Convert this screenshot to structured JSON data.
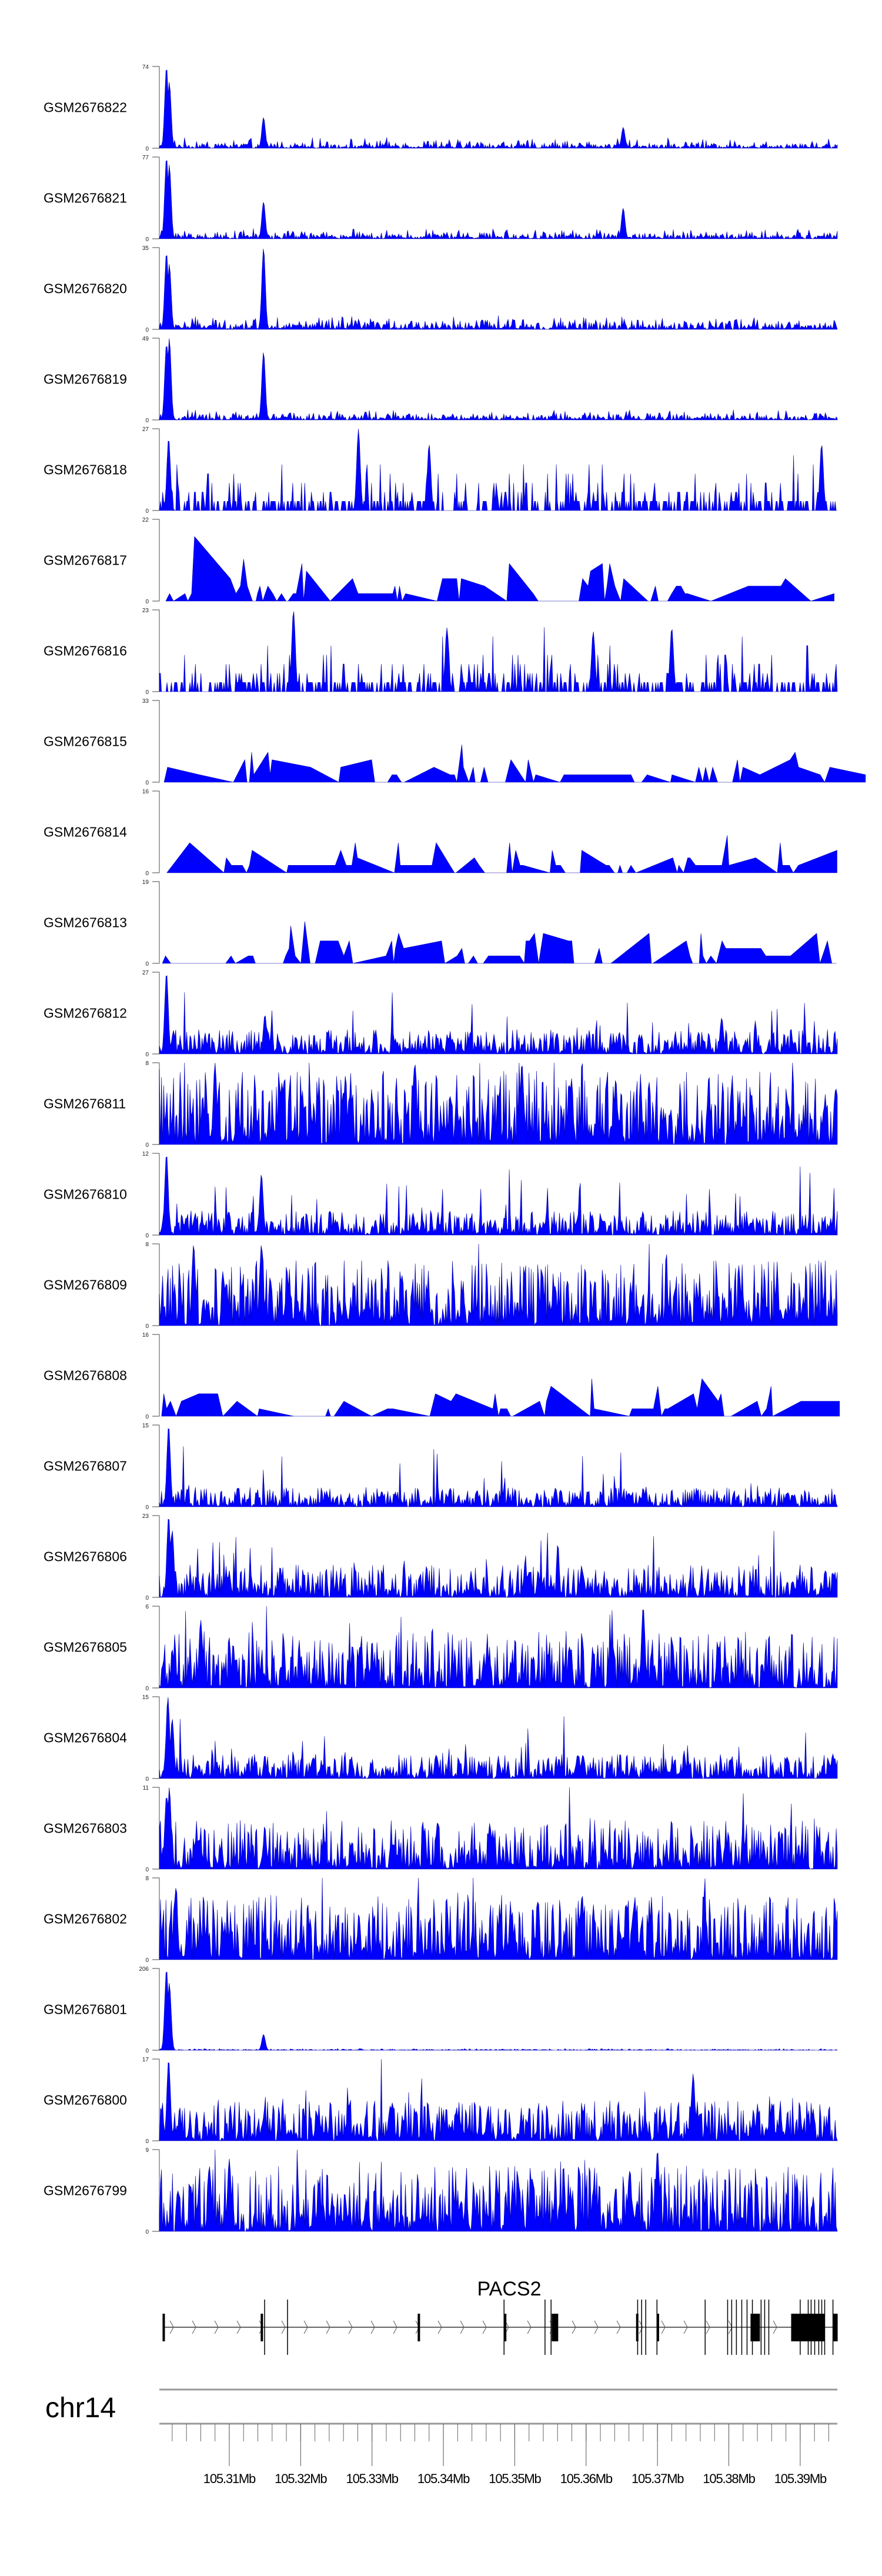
{
  "chart_data": {
    "type": "area",
    "title": "",
    "chromosome": "chr14",
    "xlim_mb": [
      105.3002,
      105.3952
    ],
    "x_axis": {
      "major_ticks_mb": [
        105.31,
        105.32,
        105.33,
        105.34,
        105.35,
        105.36,
        105.37,
        105.38,
        105.39
      ],
      "major_tick_labels": [
        "105.31Mb",
        "105.32Mb",
        "105.33Mb",
        "105.34Mb",
        "105.35Mb",
        "105.36Mb",
        "105.37Mb",
        "105.38Mb",
        "105.39Mb"
      ],
      "minor_tick_step_mb": 0.002
    },
    "fill_color": "#0000ff",
    "tracks": [
      {
        "name": "GSM2676822",
        "ylim": [
          0,
          74
        ],
        "profile": "peaky",
        "baseline": 0.06,
        "peaks": [
          [
            105.3012,
            74
          ],
          [
            105.3016,
            60
          ],
          [
            105.3148,
            28
          ],
          [
            105.3652,
            19
          ]
        ]
      },
      {
        "name": "GSM2676821",
        "ylim": [
          0,
          77
        ],
        "profile": "peaky",
        "baseline": 0.06,
        "peaks": [
          [
            105.3012,
            77
          ],
          [
            105.3016,
            70
          ],
          [
            105.3148,
            35
          ],
          [
            105.3652,
            29
          ]
        ]
      },
      {
        "name": "GSM2676820",
        "ylim": [
          0,
          35
        ],
        "profile": "peaky",
        "baseline": 0.08,
        "peaks": [
          [
            105.3012,
            33
          ],
          [
            105.3016,
            28
          ],
          [
            105.3148,
            35
          ]
        ]
      },
      {
        "name": "GSM2676819",
        "ylim": [
          0,
          49
        ],
        "profile": "peaky",
        "baseline": 0.06,
        "peaks": [
          [
            105.3012,
            46
          ],
          [
            105.3016,
            49
          ],
          [
            105.3148,
            41
          ]
        ]
      },
      {
        "name": "GSM2676818",
        "ylim": [
          0,
          27
        ],
        "profile": "spiky",
        "baseline": 0.25,
        "peaks": [
          [
            105.3281,
            27
          ],
          [
            105.3015,
            24
          ],
          [
            105.338,
            22
          ],
          [
            105.393,
            22
          ]
        ]
      },
      {
        "name": "GSM2676817",
        "ylim": [
          0,
          22
        ],
        "profile": "sparse",
        "baseline": 0.2,
        "peaks": [
          [
            105.3053,
            22
          ],
          [
            105.3118,
            16
          ],
          [
            105.3236,
            16
          ],
          [
            105.3502,
            16
          ]
        ]
      },
      {
        "name": "GSM2676816",
        "ylim": [
          0,
          23
        ],
        "profile": "spiky",
        "baseline": 0.2,
        "peaks": [
          [
            105.319,
            23
          ],
          [
            105.3405,
            18
          ],
          [
            105.372,
            18
          ],
          [
            105.361,
            17
          ]
        ]
      },
      {
        "name": "GSM2676815",
        "ylim": [
          0,
          33
        ],
        "profile": "sparse",
        "baseline": 0.2,
        "peaks": [
          [
            105.3622,
            33
          ],
          [
            105.3405,
            25
          ],
          [
            105.363,
            25
          ]
        ]
      },
      {
        "name": "GSM2676814",
        "ylim": [
          0,
          16
        ],
        "profile": "sparse",
        "baseline": 0.3,
        "peaks": [
          [
            105.3457,
            16
          ],
          [
            105.33,
            14
          ],
          [
            105.303,
            14
          ]
        ]
      },
      {
        "name": "GSM2676813",
        "ylim": [
          0,
          19
        ],
        "profile": "sparse",
        "baseline": 0.2,
        "peaks": [
          [
            105.3203,
            19
          ],
          [
            105.3544,
            19
          ],
          [
            105.3627,
            19
          ],
          [
            105.3088,
            15
          ]
        ]
      },
      {
        "name": "GSM2676812",
        "ylim": [
          0,
          27
        ],
        "profile": "noisy",
        "baseline": 0.15,
        "peaks": [
          [
            105.3012,
            27
          ],
          [
            105.315,
            13
          ],
          [
            105.379,
            12
          ]
        ]
      },
      {
        "name": "GSM2676811",
        "ylim": [
          0,
          8
        ],
        "profile": "noisy",
        "baseline": 0.45,
        "peaks": [
          [
            105.308,
            8
          ],
          [
            105.336,
            8
          ],
          [
            105.351,
            8
          ]
        ]
      },
      {
        "name": "GSM2676810",
        "ylim": [
          0,
          12
        ],
        "profile": "noisy",
        "baseline": 0.15,
        "peaks": [
          [
            105.3012,
            12
          ],
          [
            105.3145,
            9
          ]
        ]
      },
      {
        "name": "GSM2676809",
        "ylim": [
          0,
          8
        ],
        "profile": "noisy",
        "baseline": 0.4,
        "peaks": [
          [
            105.305,
            8
          ],
          [
            105.3145,
            8
          ]
        ]
      },
      {
        "name": "GSM2676808",
        "ylim": [
          0,
          16
        ],
        "profile": "sparse",
        "baseline": 0.2,
        "peaks": [
          [
            105.32,
            16
          ],
          [
            105.356,
            13
          ],
          [
            105.316,
            12
          ]
        ]
      },
      {
        "name": "GSM2676807",
        "ylim": [
          0,
          15
        ],
        "profile": "noisy",
        "baseline": 0.12,
        "peaks": [
          [
            105.3015,
            15
          ]
        ]
      },
      {
        "name": "GSM2676806",
        "ylim": [
          0,
          23
        ],
        "profile": "noisy",
        "baseline": 0.2,
        "peaks": [
          [
            105.3015,
            23
          ],
          [
            105.302,
            19
          ]
        ]
      },
      {
        "name": "GSM2676805",
        "ylim": [
          0,
          6
        ],
        "profile": "noisy",
        "baseline": 0.35,
        "peaks": [
          [
            105.368,
            6
          ],
          [
            105.306,
            5
          ]
        ]
      },
      {
        "name": "GSM2676804",
        "ylim": [
          0,
          15
        ],
        "profile": "noisy",
        "baseline": 0.15,
        "peaks": [
          [
            105.3014,
            15
          ],
          [
            105.302,
            11
          ]
        ]
      },
      {
        "name": "GSM2676803",
        "ylim": [
          0,
          11
        ],
        "profile": "noisy",
        "baseline": 0.3,
        "peaks": [
          [
            105.3016,
            11
          ],
          [
            105.3012,
            10
          ]
        ]
      },
      {
        "name": "GSM2676802",
        "ylim": [
          0,
          8
        ],
        "profile": "noisy",
        "baseline": 0.4,
        "peaks": [
          [
            105.3025,
            7
          ]
        ]
      },
      {
        "name": "GSM2676801",
        "ylim": [
          0,
          206
        ],
        "profile": "peaky",
        "baseline": 0.01,
        "peaks": [
          [
            105.3012,
            206
          ],
          [
            105.3016,
            170
          ],
          [
            105.3148,
            40
          ]
        ]
      },
      {
        "name": "GSM2676800",
        "ylim": [
          0,
          17
        ],
        "profile": "noisy",
        "baseline": 0.25,
        "peaks": [
          [
            105.3015,
            17
          ],
          [
            105.375,
            14
          ]
        ]
      },
      {
        "name": "GSM2676799",
        "ylim": [
          0,
          9
        ],
        "profile": "noisy",
        "baseline": 0.4,
        "peaks": [
          [
            105.37,
            9
          ],
          [
            105.31,
            8
          ]
        ]
      }
    ],
    "gene": {
      "name": "PACS2",
      "strand": "+",
      "start_mb": 105.3007,
      "end_mb": 105.3952,
      "exons_mb": [
        [
          105.30065,
          105.30085
        ],
        [
          105.3144,
          105.31465
        ],
        [
          105.3364,
          105.33655
        ],
        [
          105.3485,
          105.34865
        ],
        [
          105.35518,
          105.35609
        ],
        [
          105.367,
          105.36715
        ],
        [
          105.3699,
          105.37005
        ],
        [
          105.38304,
          105.38436
        ],
        [
          105.38873,
          105.39343
        ],
        [
          105.39459,
          105.39525
        ]
      ],
      "isoform_marks_mb": [
        105.31495,
        105.31816,
        105.3485,
        105.35424,
        105.35509,
        105.36722,
        105.36778,
        105.36836,
        105.36993,
        105.37668,
        105.37983,
        105.3804,
        105.38106,
        105.38181,
        105.38255,
        105.3833,
        105.38452,
        105.38502,
        105.3856,
        105.39,
        105.39112,
        105.39153,
        105.39203,
        105.3926,
        105.39302,
        105.39343,
        105.39459
      ]
    }
  }
}
